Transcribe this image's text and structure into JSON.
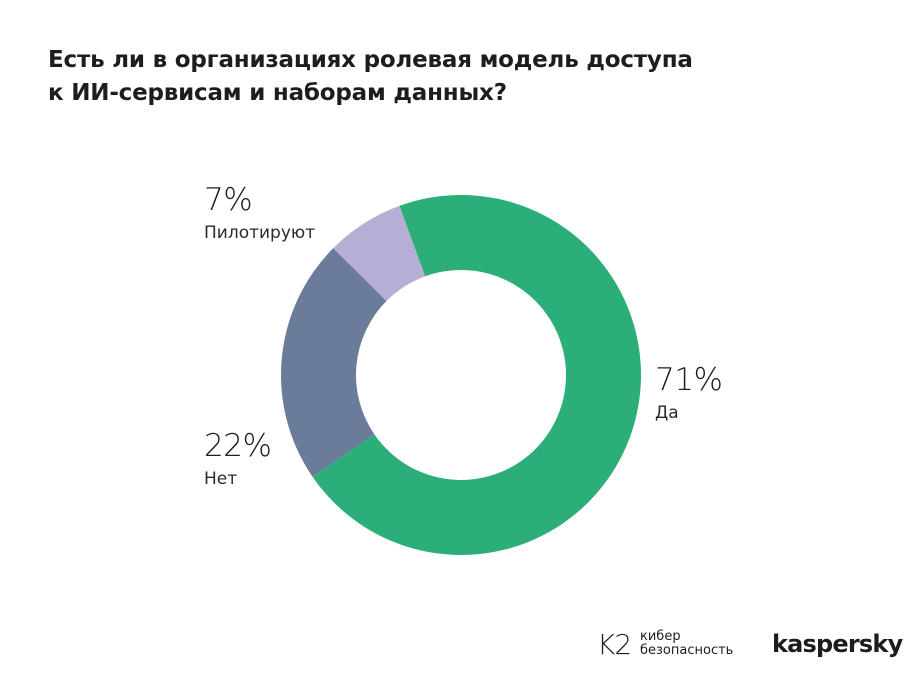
{
  "title": {
    "line1": "Есть ли в организациях ролевая модель доступа",
    "line2": "к ИИ-сервисам и наборам данных?"
  },
  "chart_data": {
    "type": "pie",
    "variant": "donut",
    "series": [
      {
        "name": "Да",
        "value": 71,
        "label": "71%",
        "color": "#2bae78"
      },
      {
        "name": "Нет",
        "value": 22,
        "label": "22%",
        "color": "#6b7c9b"
      },
      {
        "name": "Пилотируют",
        "value": 7,
        "label": "7%",
        "color": "#b7aed6"
      }
    ],
    "legend": "none"
  },
  "labels": {
    "yes": {
      "pct": "71%",
      "name": "Да"
    },
    "no": {
      "pct": "22%",
      "name": "Нет"
    },
    "pilot": {
      "pct": "7%",
      "name": "Пилотируют"
    }
  },
  "logos": {
    "k2_mark": "K2",
    "k2_line1": "кибер",
    "k2_line2": "безопасность",
    "kaspersky": "kaspersky"
  }
}
